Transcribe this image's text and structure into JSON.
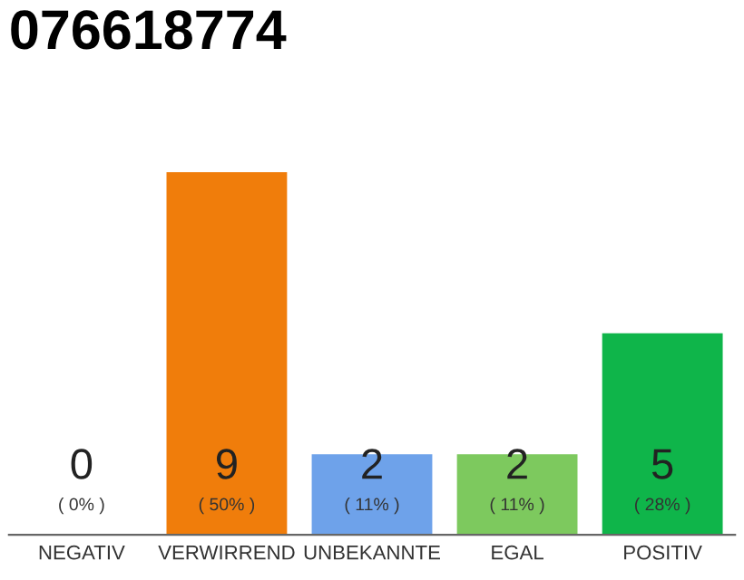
{
  "chart_data": {
    "type": "bar",
    "title": "076618774",
    "categories": [
      "NEGATIV",
      "VERWIRREND",
      "UNBEKANNTE",
      "EGAL",
      "POSITIV"
    ],
    "values": [
      0,
      9,
      2,
      2,
      5
    ],
    "colors": [
      "#9a9a9a",
      "#f07d0b",
      "#6ea2ea",
      "#7dc95e",
      "#0fb54a"
    ],
    "value_labels": [
      "0\n( 0% )",
      "9\n( 50% )",
      "2\n( 11% )",
      "2\n( 11% )",
      "5\n( 28% )"
    ],
    "grid": false,
    "legend": false
  }
}
